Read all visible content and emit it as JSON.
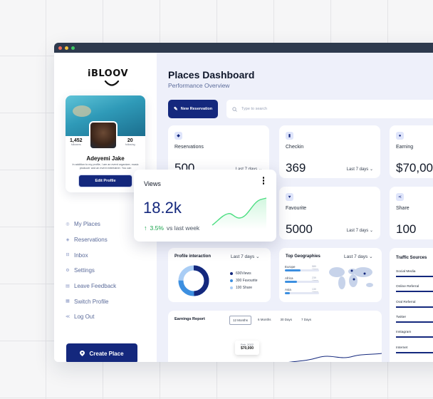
{
  "brand": {
    "logo": "iBLOOV"
  },
  "profile": {
    "followers": "1,452",
    "followers_label": "followers",
    "following": "20",
    "following_label": "following",
    "name": "Adeyemi Jake",
    "bio": "In addition to my profile, I am an event organizer, music producer and an event entertainer. You can",
    "edit_label": "Edit Profile"
  },
  "nav": [
    {
      "label": "My Places",
      "icon": "location-icon"
    },
    {
      "label": "Reservations",
      "icon": "tag-icon"
    },
    {
      "label": "Inbox",
      "icon": "inbox-icon"
    },
    {
      "label": "Settings",
      "icon": "gear-icon"
    },
    {
      "label": "Leave Feedback",
      "icon": "feedback-icon"
    },
    {
      "label": "Switch Profile",
      "icon": "switch-icon"
    },
    {
      "label": "Log Out",
      "icon": "logout-icon"
    }
  ],
  "create_place": "Create Place",
  "header": {
    "title": "Places Dashboard",
    "subtitle": "Performance Overview"
  },
  "toolbar": {
    "new_reservation": "New Reservation",
    "search_placeholder": "Type to search"
  },
  "cards": {
    "reservations": {
      "label": "Reservations",
      "value": "500",
      "period": "Last 7 days"
    },
    "checkin": {
      "label": "Checkin",
      "value": "369",
      "period": "Last 7 days"
    },
    "earning": {
      "label": "Earning",
      "value": "$70,00"
    },
    "favourite": {
      "label": "Favourite",
      "value": "5000",
      "period": "Last 7 days"
    },
    "share": {
      "label": "Share",
      "value": "100"
    }
  },
  "views_card": {
    "label": "Views",
    "value": "18.2k",
    "change": "3.5%",
    "change_suffix": "vs last week"
  },
  "profile_interaction": {
    "title": "Profile interaction",
    "period": "Last 7 days",
    "legend": [
      {
        "label": "600Views",
        "color": "#14287d"
      },
      {
        "label": "300 Favourite",
        "color": "#3c8fe0"
      },
      {
        "label": "100 Share",
        "color": "#a9cdf5"
      }
    ]
  },
  "top_geo": {
    "title": "Top Geographies",
    "period": "Last 7 days",
    "rows": [
      {
        "name": "Europe",
        "value": "580 Users",
        "fill": 0.45
      },
      {
        "name": "Africa",
        "value": "239 Users",
        "fill": 0.35
      },
      {
        "name": "Asia",
        "value": "130 Users",
        "fill": 0.15
      }
    ]
  },
  "traffic": {
    "title": "Traffic Sources",
    "rows": [
      "Social Media",
      "Online Referral",
      "Oral Referral",
      "Twitter",
      "Instagram",
      "Internet"
    ]
  },
  "earnings": {
    "title": "Earnings Report",
    "tabs": [
      "12 Months",
      "6 Months",
      "30 Days",
      "7 Days"
    ],
    "tooltip_date": "Feb, 2022",
    "tooltip_value": "$70,000"
  }
}
